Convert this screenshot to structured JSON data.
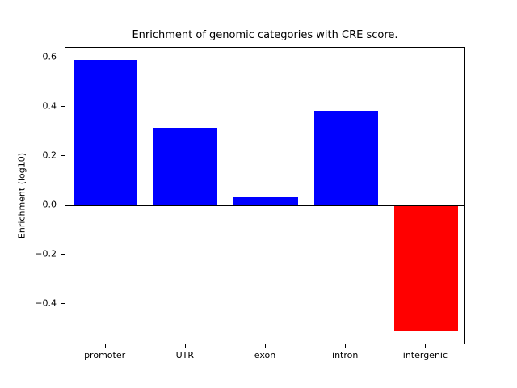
{
  "chart_data": {
    "type": "bar",
    "title": "Enrichment of genomic categories with CRE score.",
    "xlabel": "",
    "ylabel": "Enrichment (log10)",
    "categories": [
      "promoter",
      "UTR",
      "exon",
      "intron",
      "intergenic"
    ],
    "values": [
      0.59,
      0.315,
      0.033,
      0.385,
      -0.51
    ],
    "bar_colors": [
      "#0000ff",
      "#0000ff",
      "#0000ff",
      "#0000ff",
      "#ff0000"
    ],
    "positive_color": "#0000ff",
    "negative_color": "#ff0000",
    "ylim": [
      -0.567,
      0.64
    ],
    "yticks": [
      -0.4,
      -0.2,
      0.0,
      0.2,
      0.4,
      0.6
    ],
    "ytick_labels": [
      "−0.4",
      "−0.2",
      "0.0",
      "0.2",
      "0.4",
      "0.6"
    ],
    "zero_line": true,
    "grid": false,
    "legend": null,
    "background": "#ffffff"
  }
}
